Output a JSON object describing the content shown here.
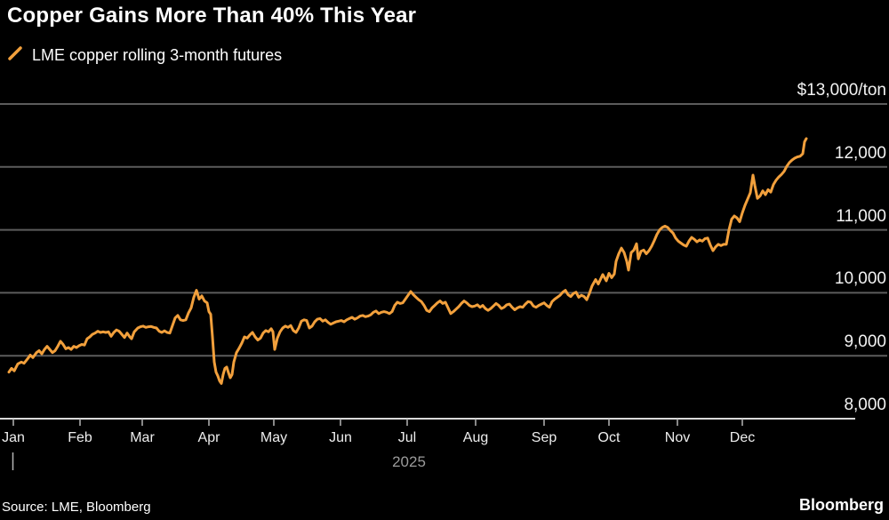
{
  "title": "Copper Gains More Than 40% This Year",
  "legend": {
    "label": "LME copper rolling 3-month futures"
  },
  "source": "Source: LME, Bloomberg",
  "brand": "Bloomberg",
  "colors": {
    "background": "#000000",
    "line": "#F2A03C",
    "grid": "#5c5c5c",
    "axis": "#d9d9d9",
    "tick": "#b5b5b5",
    "title_text": "#ffffff",
    "axis_label_text": "#f2f2f2",
    "year_text": "#9b9b9b"
  },
  "chart_data": {
    "type": "line",
    "title": "Copper Gains More Than 40% This Year",
    "series_name": "LME copper rolling 3-month futures",
    "unit": "USD/ton",
    "x_tick_labels": [
      "Jan",
      "Feb",
      "Mar",
      "Apr",
      "May",
      "Jun",
      "Jul",
      "Aug",
      "Sep",
      "Oct",
      "Nov",
      "Dec"
    ],
    "x_axis_year": "2025",
    "ylim": [
      8000,
      13000
    ],
    "grid": true,
    "legend_position": "top-left",
    "y_ticks": [
      {
        "label": "$13,000/ton",
        "value": 13000
      },
      {
        "label": "12,000",
        "value": 12000
      },
      {
        "label": "11,000",
        "value": 11000
      },
      {
        "label": "10,000",
        "value": 10000
      },
      {
        "label": "9,000",
        "value": 9000
      },
      {
        "label": "8,000",
        "value": 8000
      }
    ],
    "points": [
      [
        10,
        8740
      ],
      [
        13,
        8800
      ],
      [
        16,
        8760
      ],
      [
        20,
        8870
      ],
      [
        24,
        8900
      ],
      [
        27,
        8880
      ],
      [
        31,
        8950
      ],
      [
        34,
        9010
      ],
      [
        37,
        8970
      ],
      [
        41,
        9050
      ],
      [
        44,
        9080
      ],
      [
        47,
        9030
      ],
      [
        50,
        9100
      ],
      [
        53,
        9150
      ],
      [
        56,
        9100
      ],
      [
        59,
        9050
      ],
      [
        62,
        9080
      ],
      [
        65,
        9150
      ],
      [
        68,
        9230
      ],
      [
        71,
        9180
      ],
      [
        74,
        9110
      ],
      [
        77,
        9130
      ],
      [
        80,
        9100
      ],
      [
        83,
        9150
      ],
      [
        86,
        9130
      ],
      [
        89,
        9160
      ],
      [
        92,
        9180
      ],
      [
        95,
        9170
      ],
      [
        98,
        9270
      ],
      [
        101,
        9300
      ],
      [
        104,
        9340
      ],
      [
        107,
        9360
      ],
      [
        110,
        9390
      ],
      [
        113,
        9370
      ],
      [
        116,
        9380
      ],
      [
        119,
        9370
      ],
      [
        122,
        9380
      ],
      [
        125,
        9310
      ],
      [
        128,
        9370
      ],
      [
        131,
        9410
      ],
      [
        134,
        9390
      ],
      [
        137,
        9340
      ],
      [
        140,
        9290
      ],
      [
        143,
        9360
      ],
      [
        146,
        9300
      ],
      [
        148,
        9270
      ],
      [
        151,
        9380
      ],
      [
        155,
        9440
      ],
      [
        158,
        9460
      ],
      [
        161,
        9470
      ],
      [
        164,
        9450
      ],
      [
        167,
        9460
      ],
      [
        170,
        9465
      ],
      [
        173,
        9450
      ],
      [
        176,
        9440
      ],
      [
        179,
        9390
      ],
      [
        182,
        9370
      ],
      [
        185,
        9395
      ],
      [
        188,
        9370
      ],
      [
        191,
        9360
      ],
      [
        194,
        9480
      ],
      [
        197,
        9600
      ],
      [
        200,
        9640
      ],
      [
        203,
        9570
      ],
      [
        206,
        9560
      ],
      [
        209,
        9570
      ],
      [
        212,
        9680
      ],
      [
        215,
        9760
      ],
      [
        218,
        9930
      ],
      [
        221,
        10040
      ],
      [
        224,
        9900
      ],
      [
        227,
        9950
      ],
      [
        230,
        9870
      ],
      [
        233,
        9840
      ],
      [
        235,
        9700
      ],
      [
        237,
        9660
      ],
      [
        239,
        9300
      ],
      [
        241,
        8900
      ],
      [
        243,
        8740
      ],
      [
        245,
        8680
      ],
      [
        247,
        8600
      ],
      [
        249,
        8560
      ],
      [
        251,
        8700
      ],
      [
        253,
        8800
      ],
      [
        255,
        8820
      ],
      [
        257,
        8730
      ],
      [
        259,
        8650
      ],
      [
        261,
        8700
      ],
      [
        263,
        8900
      ],
      [
        266,
        9050
      ],
      [
        269,
        9120
      ],
      [
        272,
        9200
      ],
      [
        275,
        9300
      ],
      [
        278,
        9280
      ],
      [
        281,
        9330
      ],
      [
        284,
        9370
      ],
      [
        287,
        9300
      ],
      [
        290,
        9250
      ],
      [
        293,
        9280
      ],
      [
        296,
        9360
      ],
      [
        299,
        9400
      ],
      [
        302,
        9380
      ],
      [
        305,
        9430
      ],
      [
        307,
        9380
      ],
      [
        309,
        9100
      ],
      [
        312,
        9280
      ],
      [
        315,
        9380
      ],
      [
        318,
        9440
      ],
      [
        321,
        9470
      ],
      [
        324,
        9450
      ],
      [
        327,
        9480
      ],
      [
        330,
        9400
      ],
      [
        333,
        9370
      ],
      [
        336,
        9440
      ],
      [
        339,
        9550
      ],
      [
        342,
        9570
      ],
      [
        345,
        9560
      ],
      [
        348,
        9440
      ],
      [
        351,
        9470
      ],
      [
        354,
        9540
      ],
      [
        357,
        9580
      ],
      [
        360,
        9590
      ],
      [
        363,
        9550
      ],
      [
        366,
        9570
      ],
      [
        369,
        9530
      ],
      [
        372,
        9500
      ],
      [
        375,
        9520
      ],
      [
        378,
        9540
      ],
      [
        381,
        9550
      ],
      [
        384,
        9560
      ],
      [
        387,
        9540
      ],
      [
        390,
        9570
      ],
      [
        393,
        9590
      ],
      [
        396,
        9610
      ],
      [
        399,
        9580
      ],
      [
        402,
        9600
      ],
      [
        405,
        9630
      ],
      [
        408,
        9640
      ],
      [
        411,
        9620
      ],
      [
        414,
        9630
      ],
      [
        417,
        9650
      ],
      [
        420,
        9690
      ],
      [
        423,
        9710
      ],
      [
        426,
        9670
      ],
      [
        429,
        9690
      ],
      [
        432,
        9700
      ],
      [
        435,
        9690
      ],
      [
        438,
        9670
      ],
      [
        441,
        9700
      ],
      [
        444,
        9800
      ],
      [
        447,
        9850
      ],
      [
        450,
        9830
      ],
      [
        453,
        9840
      ],
      [
        456,
        9900
      ],
      [
        459,
        9960
      ],
      [
        462,
        10020
      ],
      [
        465,
        9970
      ],
      [
        468,
        9930
      ],
      [
        471,
        9890
      ],
      [
        474,
        9860
      ],
      [
        477,
        9800
      ],
      [
        480,
        9720
      ],
      [
        483,
        9700
      ],
      [
        486,
        9760
      ],
      [
        489,
        9800
      ],
      [
        492,
        9840
      ],
      [
        495,
        9870
      ],
      [
        498,
        9830
      ],
      [
        501,
        9850
      ],
      [
        504,
        9760
      ],
      [
        507,
        9670
      ],
      [
        510,
        9700
      ],
      [
        513,
        9740
      ],
      [
        516,
        9780
      ],
      [
        519,
        9830
      ],
      [
        522,
        9870
      ],
      [
        525,
        9840
      ],
      [
        528,
        9800
      ],
      [
        531,
        9780
      ],
      [
        534,
        9790
      ],
      [
        537,
        9810
      ],
      [
        540,
        9770
      ],
      [
        543,
        9800
      ],
      [
        546,
        9750
      ],
      [
        549,
        9720
      ],
      [
        552,
        9750
      ],
      [
        555,
        9790
      ],
      [
        558,
        9830
      ],
      [
        561,
        9800
      ],
      [
        564,
        9750
      ],
      [
        567,
        9770
      ],
      [
        570,
        9810
      ],
      [
        573,
        9820
      ],
      [
        576,
        9770
      ],
      [
        579,
        9730
      ],
      [
        582,
        9760
      ],
      [
        585,
        9780
      ],
      [
        588,
        9770
      ],
      [
        591,
        9820
      ],
      [
        594,
        9860
      ],
      [
        597,
        9850
      ],
      [
        600,
        9790
      ],
      [
        603,
        9770
      ],
      [
        606,
        9800
      ],
      [
        609,
        9820
      ],
      [
        612,
        9840
      ],
      [
        615,
        9800
      ],
      [
        618,
        9770
      ],
      [
        621,
        9860
      ],
      [
        624,
        9900
      ],
      [
        627,
        9930
      ],
      [
        630,
        9960
      ],
      [
        633,
        10010
      ],
      [
        636,
        10040
      ],
      [
        639,
        9970
      ],
      [
        642,
        9940
      ],
      [
        645,
        9990
      ],
      [
        648,
        10010
      ],
      [
        651,
        9930
      ],
      [
        654,
        9960
      ],
      [
        657,
        9940
      ],
      [
        660,
        9890
      ],
      [
        663,
        9990
      ],
      [
        666,
        10110
      ],
      [
        670,
        10210
      ],
      [
        673,
        10140
      ],
      [
        678,
        10290
      ],
      [
        682,
        10190
      ],
      [
        685,
        10310
      ],
      [
        688,
        10240
      ],
      [
        691,
        10300
      ],
      [
        693,
        10500
      ],
      [
        696,
        10620
      ],
      [
        699,
        10710
      ],
      [
        702,
        10640
      ],
      [
        705,
        10500
      ],
      [
        707,
        10360
      ],
      [
        710,
        10640
      ],
      [
        713,
        10680
      ],
      [
        716,
        10780
      ],
      [
        718,
        10540
      ],
      [
        721,
        10660
      ],
      [
        724,
        10680
      ],
      [
        727,
        10620
      ],
      [
        730,
        10670
      ],
      [
        733,
        10740
      ],
      [
        736,
        10830
      ],
      [
        739,
        10930
      ],
      [
        742,
        11000
      ],
      [
        745,
        11040
      ],
      [
        748,
        11060
      ],
      [
        751,
        11040
      ],
      [
        754,
        10990
      ],
      [
        757,
        10950
      ],
      [
        760,
        10870
      ],
      [
        763,
        10820
      ],
      [
        766,
        10790
      ],
      [
        769,
        10760
      ],
      [
        772,
        10740
      ],
      [
        775,
        10820
      ],
      [
        778,
        10880
      ],
      [
        781,
        10850
      ],
      [
        784,
        10810
      ],
      [
        787,
        10840
      ],
      [
        790,
        10820
      ],
      [
        793,
        10860
      ],
      [
        796,
        10870
      ],
      [
        799,
        10760
      ],
      [
        802,
        10670
      ],
      [
        805,
        10730
      ],
      [
        808,
        10770
      ],
      [
        811,
        10750
      ],
      [
        814,
        10770
      ],
      [
        817,
        10770
      ],
      [
        820,
        11000
      ],
      [
        823,
        11170
      ],
      [
        826,
        11220
      ],
      [
        829,
        11190
      ],
      [
        832,
        11130
      ],
      [
        835,
        11270
      ],
      [
        838,
        11390
      ],
      [
        841,
        11490
      ],
      [
        844,
        11590
      ],
      [
        847,
        11870
      ],
      [
        849,
        11710
      ],
      [
        852,
        11500
      ],
      [
        855,
        11540
      ],
      [
        858,
        11620
      ],
      [
        861,
        11560
      ],
      [
        864,
        11640
      ],
      [
        867,
        11600
      ],
      [
        870,
        11720
      ],
      [
        873,
        11790
      ],
      [
        876,
        11840
      ],
      [
        879,
        11880
      ],
      [
        882,
        11930
      ],
      [
        885,
        12010
      ],
      [
        888,
        12070
      ],
      [
        891,
        12110
      ],
      [
        894,
        12140
      ],
      [
        897,
        12160
      ],
      [
        900,
        12170
      ],
      [
        903,
        12210
      ],
      [
        905,
        12400
      ],
      [
        907,
        12450
      ]
    ]
  }
}
